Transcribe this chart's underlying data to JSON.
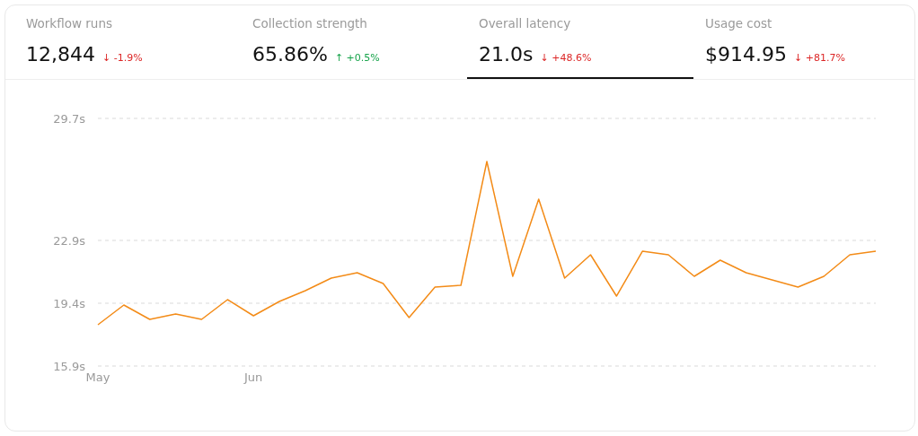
{
  "chart_data": [
    {
      "type": "other",
      "title": "Workflow runs",
      "annotations": [
        "12,844",
        "↓ -1.9%"
      ],
      "color": "#dc2626"
    },
    {
      "type": "other",
      "title": "Collection strength",
      "annotations": [
        "65.86%",
        "↑ +0.5%"
      ],
      "color": "#16a34a"
    },
    {
      "type": "other",
      "title": "Overall latency",
      "annotations": [
        "21.0s",
        "↓ +48.6%"
      ],
      "color": "#dc2626"
    },
    {
      "type": "other",
      "title": "Usage cost",
      "annotations": [
        "$914.95",
        "↓ +81.7%"
      ],
      "color": "#dc2626"
    },
    {
      "type": "line",
      "categories": [
        "May",
        null,
        null,
        null,
        null,
        null,
        "Jun",
        null,
        null,
        null,
        null,
        null,
        null,
        null,
        null,
        null,
        null,
        null,
        null,
        null,
        null,
        null,
        null,
        null,
        null,
        null,
        null,
        null,
        null,
        null,
        null
      ],
      "series": [
        {
          "color": "#f38b17",
          "values": [
            18.2,
            19.3,
            18.5,
            18.8,
            18.5,
            19.6,
            18.7,
            19.5,
            20.1,
            20.8,
            21.1,
            20.5,
            18.6,
            20.3,
            20.4,
            27.3,
            20.9,
            25.2,
            20.8,
            22.1,
            19.8,
            22.3,
            22.1,
            20.9,
            21.8,
            21.1,
            20.7,
            20.3,
            20.9,
            22.1,
            22.3
          ]
        }
      ],
      "ylim": [
        15.9,
        29.7
      ],
      "yticks": [
        {
          "value": 15.9,
          "label": "15.9s"
        },
        {
          "value": 19.4,
          "label": "19.4s"
        },
        {
          "value": 22.9,
          "label": "22.9s"
        },
        {
          "value": 29.7,
          "label": "29.7s"
        }
      ],
      "grid": "y",
      "legend": false,
      "marker": "none",
      "line_style": "solid"
    }
  ]
}
